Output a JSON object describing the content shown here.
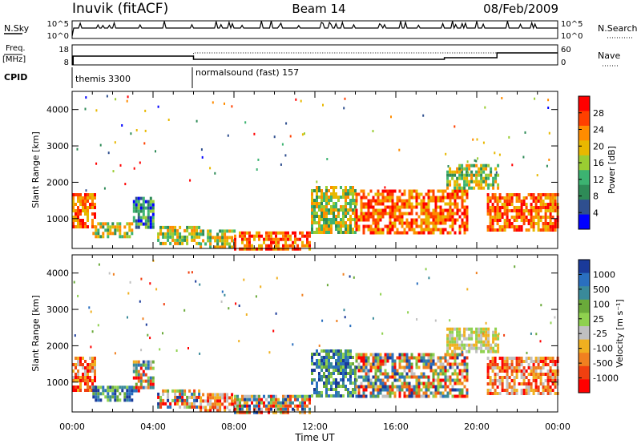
{
  "header": {
    "station": "Inuvik (fitACF)",
    "beam": "Beam 14",
    "date": "08/Feb/2009"
  },
  "noise_panel": {
    "left_label": "N.Sky",
    "right_label": "N.Search",
    "ticks_left": [
      "10^5",
      "10^0"
    ],
    "ticks_right": [
      "10^5",
      "10^0"
    ]
  },
  "freq_panel": {
    "left_label_top": "Freq.",
    "left_label_bottom": "[MHz]",
    "right_label": "Nave",
    "ticks_left": [
      "18",
      "8"
    ],
    "ticks_right": [
      "60",
      "0"
    ]
  },
  "cpid_panel": {
    "label": "CPID",
    "modes": [
      {
        "name": "themis 3300",
        "start_hour": 0
      },
      {
        "name": "normalsound (fast) 157",
        "start_hour": 6
      }
    ]
  },
  "chart_data": [
    {
      "type": "heatmap",
      "quantity": "Power",
      "ylabel": "Slant Range [km]",
      "xlabel": "",
      "ylim": [
        180,
        4500
      ],
      "yticks": [
        1000,
        2000,
        3000,
        4000
      ],
      "colorbar_label": "Power [dB]",
      "colorbar_ticks": [
        "28",
        "24",
        "20",
        "16",
        "12",
        "8",
        "4"
      ],
      "colors": [
        "#ff0000",
        "#ff4000",
        "#ff8c00",
        "#e8b800",
        "#9acd32",
        "#3cb371",
        "#2e8b57",
        "#2f4f8f",
        "#0000ff"
      ],
      "echo_regions": [
        {
          "x": [
            0.0,
            1.1
          ],
          "range_km": [
            800,
            1700
          ],
          "level": "high"
        },
        {
          "x": [
            1.0,
            3.0
          ],
          "range_km": [
            500,
            900
          ],
          "level": "medium"
        },
        {
          "x": [
            3.0,
            4.0
          ],
          "range_km": [
            800,
            1600
          ],
          "level": "low"
        },
        {
          "x": [
            4.2,
            6.3
          ],
          "range_km": [
            300,
            800
          ],
          "level": "medium"
        },
        {
          "x": [
            6.3,
            8.0
          ],
          "range_km": [
            250,
            700
          ],
          "level": "medium"
        },
        {
          "x": [
            8.0,
            11.8
          ],
          "range_km": [
            200,
            650
          ],
          "level": "high"
        },
        {
          "x": [
            11.8,
            14.0
          ],
          "range_km": [
            600,
            1900
          ],
          "level": "medium"
        },
        {
          "x": [
            14.0,
            19.5
          ],
          "range_km": [
            600,
            1800
          ],
          "level": "high"
        },
        {
          "x": [
            18.5,
            21.0
          ],
          "range_km": [
            1800,
            2500
          ],
          "level": "medium"
        },
        {
          "x": [
            20.5,
            24.0
          ],
          "range_km": [
            700,
            1700
          ],
          "level": "high"
        }
      ]
    },
    {
      "type": "heatmap",
      "quantity": "Velocity",
      "ylabel": "Slant Range [km]",
      "xlabel": "Time UT",
      "ylim": [
        180,
        4500
      ],
      "yticks": [
        1000,
        2000,
        3000,
        4000
      ],
      "colorbar_label": "Velocity [m s⁻¹]",
      "colorbar_ticks": [
        "1000",
        "500",
        "100",
        "25",
        "-25",
        "-100",
        "-500",
        "-1000"
      ],
      "colors": [
        "#1a3a9a",
        "#2a6fbf",
        "#3a8a9a",
        "#6aaa3a",
        "#8fd14f",
        "#c0c0c0",
        "#f0b020",
        "#f08020",
        "#f04010",
        "#ff0000"
      ],
      "echo_regions": [
        {
          "x": [
            0.0,
            1.1
          ],
          "range_km": [
            800,
            1700
          ],
          "level": "negative"
        },
        {
          "x": [
            1.0,
            3.0
          ],
          "range_km": [
            500,
            900
          ],
          "level": "positive"
        },
        {
          "x": [
            3.0,
            4.0
          ],
          "range_km": [
            800,
            1600
          ],
          "level": "mixed"
        },
        {
          "x": [
            4.2,
            6.3
          ],
          "range_km": [
            300,
            800
          ],
          "level": "mixed"
        },
        {
          "x": [
            6.3,
            8.0
          ],
          "range_km": [
            250,
            700
          ],
          "level": "negative"
        },
        {
          "x": [
            8.0,
            11.8
          ],
          "range_km": [
            200,
            650
          ],
          "level": "mixed"
        },
        {
          "x": [
            11.8,
            14.0
          ],
          "range_km": [
            600,
            1900
          ],
          "level": "positive"
        },
        {
          "x": [
            14.0,
            19.5
          ],
          "range_km": [
            600,
            1800
          ],
          "level": "mixed"
        },
        {
          "x": [
            18.5,
            21.0
          ],
          "range_km": [
            1800,
            2500
          ],
          "level": "near-zero"
        },
        {
          "x": [
            20.5,
            24.0
          ],
          "range_km": [
            700,
            1700
          ],
          "level": "negative"
        }
      ]
    }
  ],
  "x_axis": {
    "ticks": [
      "00:00",
      "04:00",
      "08:00",
      "12:00",
      "16:00",
      "20:00",
      "00:00"
    ],
    "label": "Time UT",
    "range_hours": [
      0,
      24
    ]
  }
}
